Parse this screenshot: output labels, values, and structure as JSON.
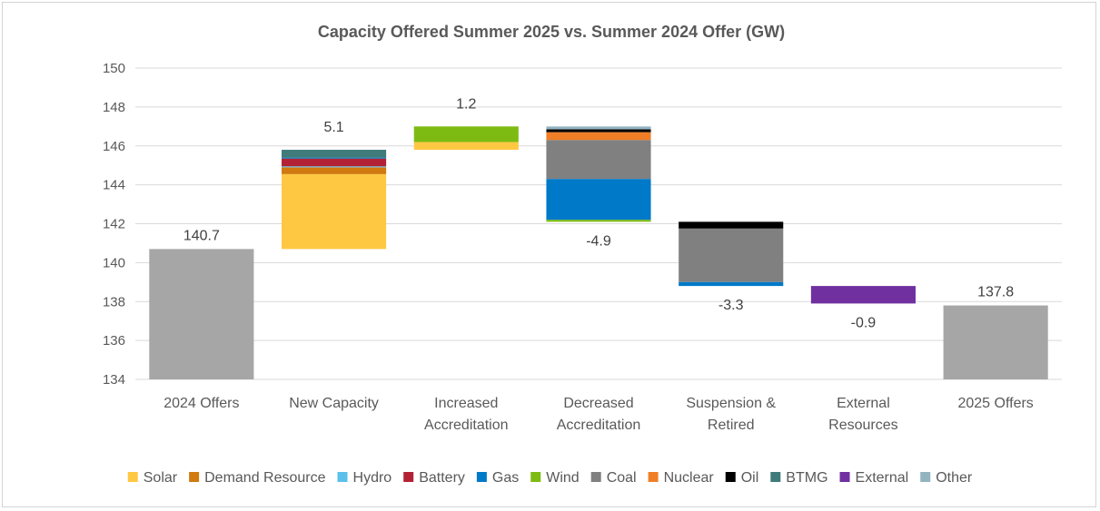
{
  "chart_data": {
    "type": "bar",
    "subtype": "waterfall-stacked",
    "title": "Capacity Offered Summer 2025 vs. Summer  2024 Offer (GW)",
    "xlabel": "",
    "ylabel": "",
    "ylim": [
      134,
      150
    ],
    "yticks": [
      134,
      136,
      138,
      140,
      142,
      144,
      146,
      148,
      150
    ],
    "grid": true,
    "legend_position": "bottom",
    "categories": [
      "2024 Offers",
      "New Capacity",
      "Increased Accreditation",
      "Decreased Accreditation",
      "Suspension & Retired",
      "External Resources",
      "2025 Offers"
    ],
    "category_lines": [
      [
        "2024 Offers"
      ],
      [
        "New Capacity"
      ],
      [
        "Increased",
        "Accreditation"
      ],
      [
        "Decreased",
        "Accreditation"
      ],
      [
        "Suspension &",
        "Retired"
      ],
      [
        "External",
        "Resources"
      ],
      [
        "2025 Offers"
      ]
    ],
    "series_colors": {
      "Solar": "#FFC843",
      "Demand Resource": "#D07A0F",
      "Hydro": "#5BC0EB",
      "Battery": "#B22234",
      "Gas": "#0079C8",
      "Wind": "#7DBB12",
      "Coal": "#808080",
      "Nuclear": "#F07E26",
      "Oil": "#000000",
      "BTMG": "#3F7B7B",
      "External": "#7030A0",
      "Other": "#92B4C0"
    },
    "total_color": "#A6A6A6",
    "legend": [
      "Solar",
      "Demand Resource",
      "Hydro",
      "Battery",
      "Gas",
      "Wind",
      "Coal",
      "Nuclear",
      "Oil",
      "BTMG",
      "External",
      "Other"
    ],
    "bars": [
      {
        "category": "2024 Offers",
        "kind": "total",
        "value": 140.7,
        "label": "140.7"
      },
      {
        "category": "New Capacity",
        "kind": "increase",
        "start": 140.7,
        "label": "5.1",
        "segments": [
          {
            "series": "Solar",
            "value": 3.85
          },
          {
            "series": "Demand Resource",
            "value": 0.35
          },
          {
            "series": "Hydro",
            "value": 0.05
          },
          {
            "series": "Battery",
            "value": 0.4
          },
          {
            "series": "Gas",
            "value": 0.05
          },
          {
            "series": "BTMG",
            "value": 0.4
          }
        ]
      },
      {
        "category": "Increased Accreditation",
        "kind": "increase",
        "start": 145.8,
        "label": "1.2",
        "segments": [
          {
            "series": "Solar",
            "value": 0.4
          },
          {
            "series": "Wind",
            "value": 0.8
          }
        ]
      },
      {
        "category": "Decreased Accreditation",
        "kind": "decrease",
        "start": 147.0,
        "label": "-4.9",
        "segments": [
          {
            "series": "Other",
            "value": 0.15
          },
          {
            "series": "Oil",
            "value": 0.15
          },
          {
            "series": "Nuclear",
            "value": 0.4
          },
          {
            "series": "Coal",
            "value": 2.0
          },
          {
            "series": "Gas",
            "value": 2.1
          },
          {
            "series": "Wind",
            "value": 0.1
          }
        ]
      },
      {
        "category": "Suspension & Retired",
        "kind": "decrease",
        "start": 142.1,
        "label": "-3.3",
        "segments": [
          {
            "series": "Oil",
            "value": 0.35
          },
          {
            "series": "Coal",
            "value": 2.75
          },
          {
            "series": "Gas",
            "value": 0.2
          }
        ]
      },
      {
        "category": "External Resources",
        "kind": "decrease",
        "start": 138.8,
        "label": "-0.9",
        "segments": [
          {
            "series": "External",
            "value": 0.9
          }
        ]
      },
      {
        "category": "2025 Offers",
        "kind": "total",
        "value": 137.8,
        "label": "137.8"
      }
    ]
  }
}
